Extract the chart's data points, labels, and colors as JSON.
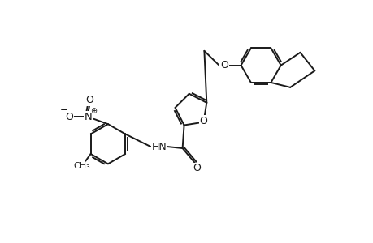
{
  "bg_color": "#ffffff",
  "line_color": "#1a1a1a",
  "line_width": 1.4,
  "dbo": 0.06,
  "font_size": 8.5,
  "fig_width": 4.6,
  "fig_height": 3.0,
  "dpi": 100,
  "xlim": [
    0,
    10.0
  ],
  "ylim": [
    -1.0,
    6.5
  ]
}
